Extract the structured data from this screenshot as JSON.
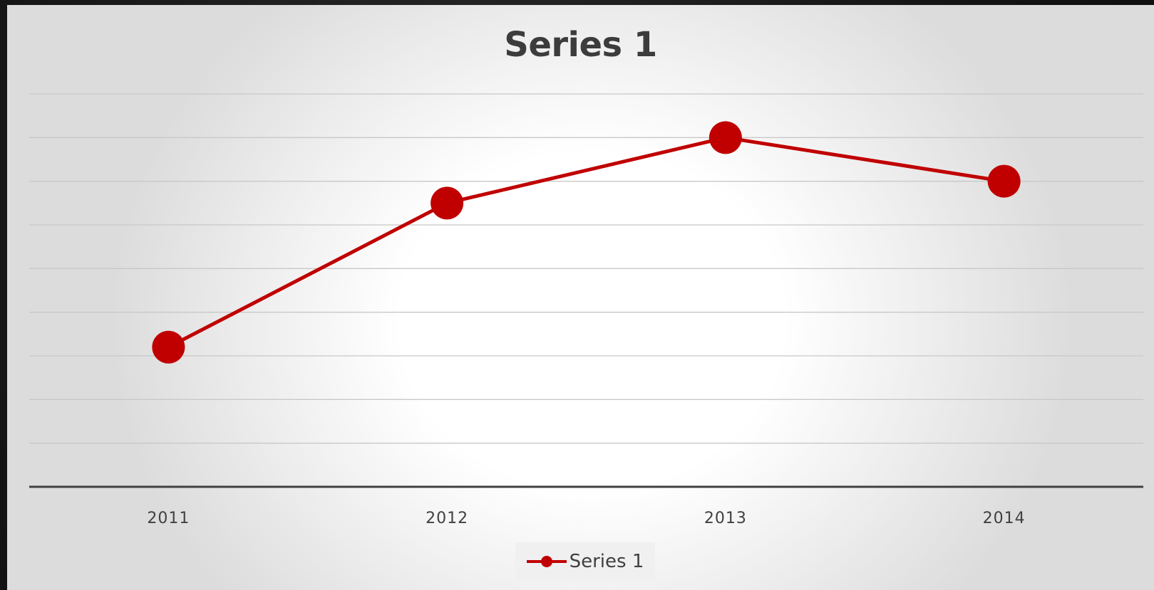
{
  "chart_data": {
    "type": "line",
    "title": "Series 1",
    "categories": [
      "2011",
      "2012",
      "2013",
      "2014"
    ],
    "series": [
      {
        "name": "Series 1",
        "values": [
          3.2,
          6.5,
          8.0,
          7.0
        ]
      }
    ],
    "ylim": [
      0,
      9
    ],
    "grid": true,
    "legend_position": "bottom",
    "colors": {
      "series": "#c00000",
      "grid": "#c8c8c8",
      "axis": "#404040"
    }
  }
}
